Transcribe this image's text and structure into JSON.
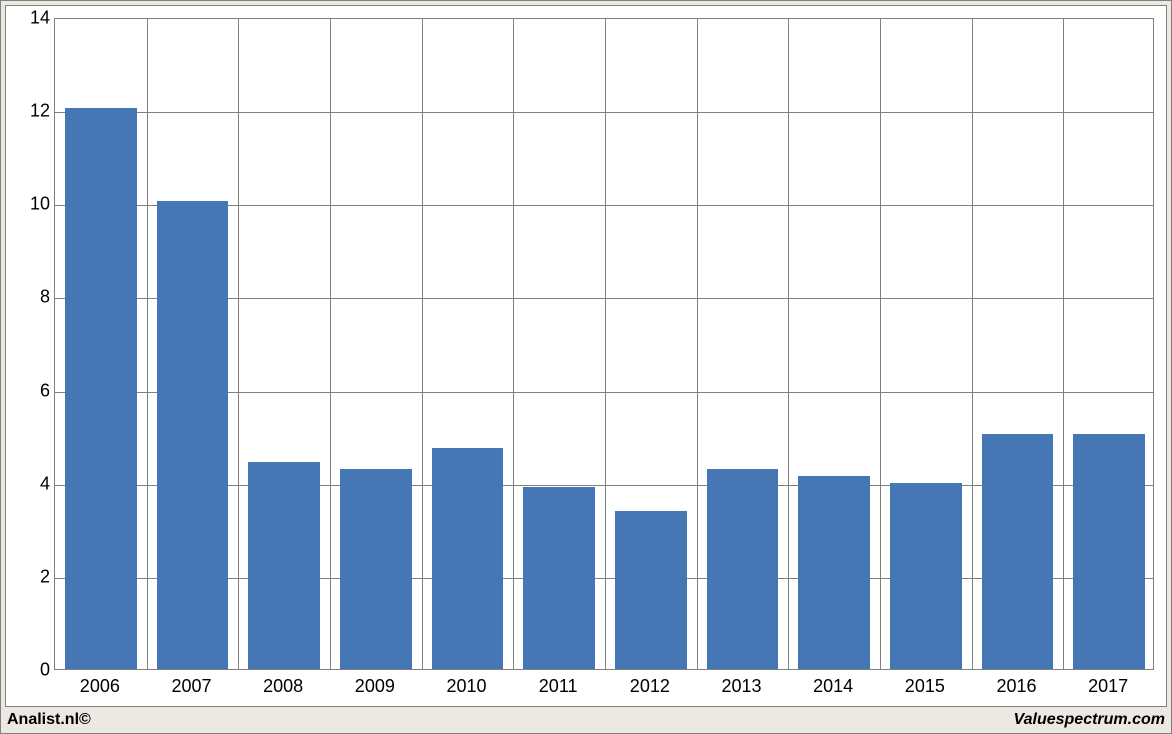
{
  "chart": {
    "type": "bar",
    "categories": [
      "2006",
      "2007",
      "2008",
      "2009",
      "2010",
      "2011",
      "2012",
      "2013",
      "2014",
      "2015",
      "2016",
      "2017"
    ],
    "values": [
      12.05,
      10.05,
      4.45,
      4.3,
      4.75,
      3.9,
      3.4,
      4.3,
      4.15,
      4.0,
      5.05,
      5.05
    ],
    "bar_color": "#4577b4",
    "ylim": [
      0,
      14
    ],
    "ytick_step": 2,
    "yticks": [
      0,
      2,
      4,
      6,
      8,
      10,
      12,
      14
    ],
    "grid_color": "#808080",
    "background_color": "#ffffff",
    "outer_background": "#ece9e2",
    "bar_gap_ratio": 0.22,
    "axis_fontsize": 18
  },
  "footer": {
    "left": "Analist.nl©",
    "right": "Valuespectrum.com"
  }
}
